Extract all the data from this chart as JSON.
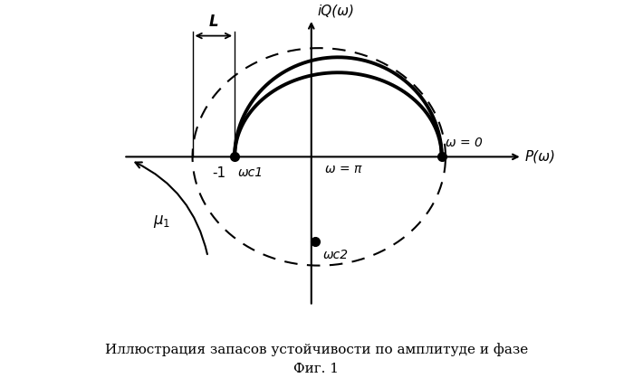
{
  "title_line1": "Иллюстрация запасов устойчивости по амплитуде и фазе",
  "title_line2": "Фиг. 1",
  "bg_color": "#ffffff",
  "x_label": "P(ω)",
  "y_label": "iQ(ω)",
  "omega0_label": "ω = 0",
  "omega_pi_label": "ω = π",
  "wc1_label": "ωc1",
  "wc2_label": "ωc2",
  "mu1_label": "μ1",
  "L_label": "L",
  "minus1_label": "-1"
}
